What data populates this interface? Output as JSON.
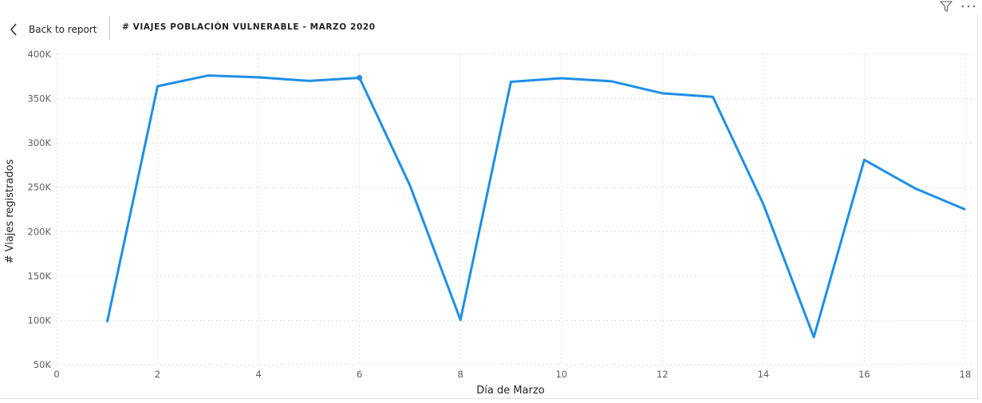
{
  "header": {
    "back_label": "Back to report",
    "title": "# VIAJES POBLACIÓN VULNERABLE - MARZO 2020",
    "icons": [
      "chevron-left-icon",
      "filter-icon",
      "more-options-icon"
    ]
  },
  "colors": {
    "series": "#1e8fe6",
    "grid": "#c8c6c4",
    "text": "#252423",
    "tick": "#605e5c"
  },
  "chart_data": {
    "type": "line",
    "title": "# VIAJES POBLACIÓN VULNERABLE - MARZO 2020",
    "xlabel": "Día de Marzo",
    "ylabel": "# Viajes registrados",
    "xlim": [
      0,
      18
    ],
    "ylim": [
      50000,
      400000
    ],
    "x_ticks": [
      0,
      2,
      4,
      6,
      8,
      10,
      12,
      14,
      16,
      18
    ],
    "y_ticks": [
      50000,
      100000,
      150000,
      200000,
      250000,
      300000,
      350000,
      400000
    ],
    "y_tick_labels": [
      "50K",
      "100K",
      "150K",
      "200K",
      "250K",
      "300K",
      "350K",
      "400K"
    ],
    "grid": true,
    "series": [
      {
        "x": [
          1,
          2,
          3,
          4,
          5,
          6,
          7,
          8,
          9,
          10,
          11,
          12,
          13,
          14,
          15,
          16,
          17,
          18
        ],
        "values": [
          98000,
          364000,
          376000,
          374000,
          370000,
          373500,
          252000,
          100500,
          369000,
          373000,
          369500,
          356000,
          352000,
          231000,
          81000,
          281000,
          249000,
          225000
        ],
        "highlighted_point": 6
      }
    ]
  }
}
